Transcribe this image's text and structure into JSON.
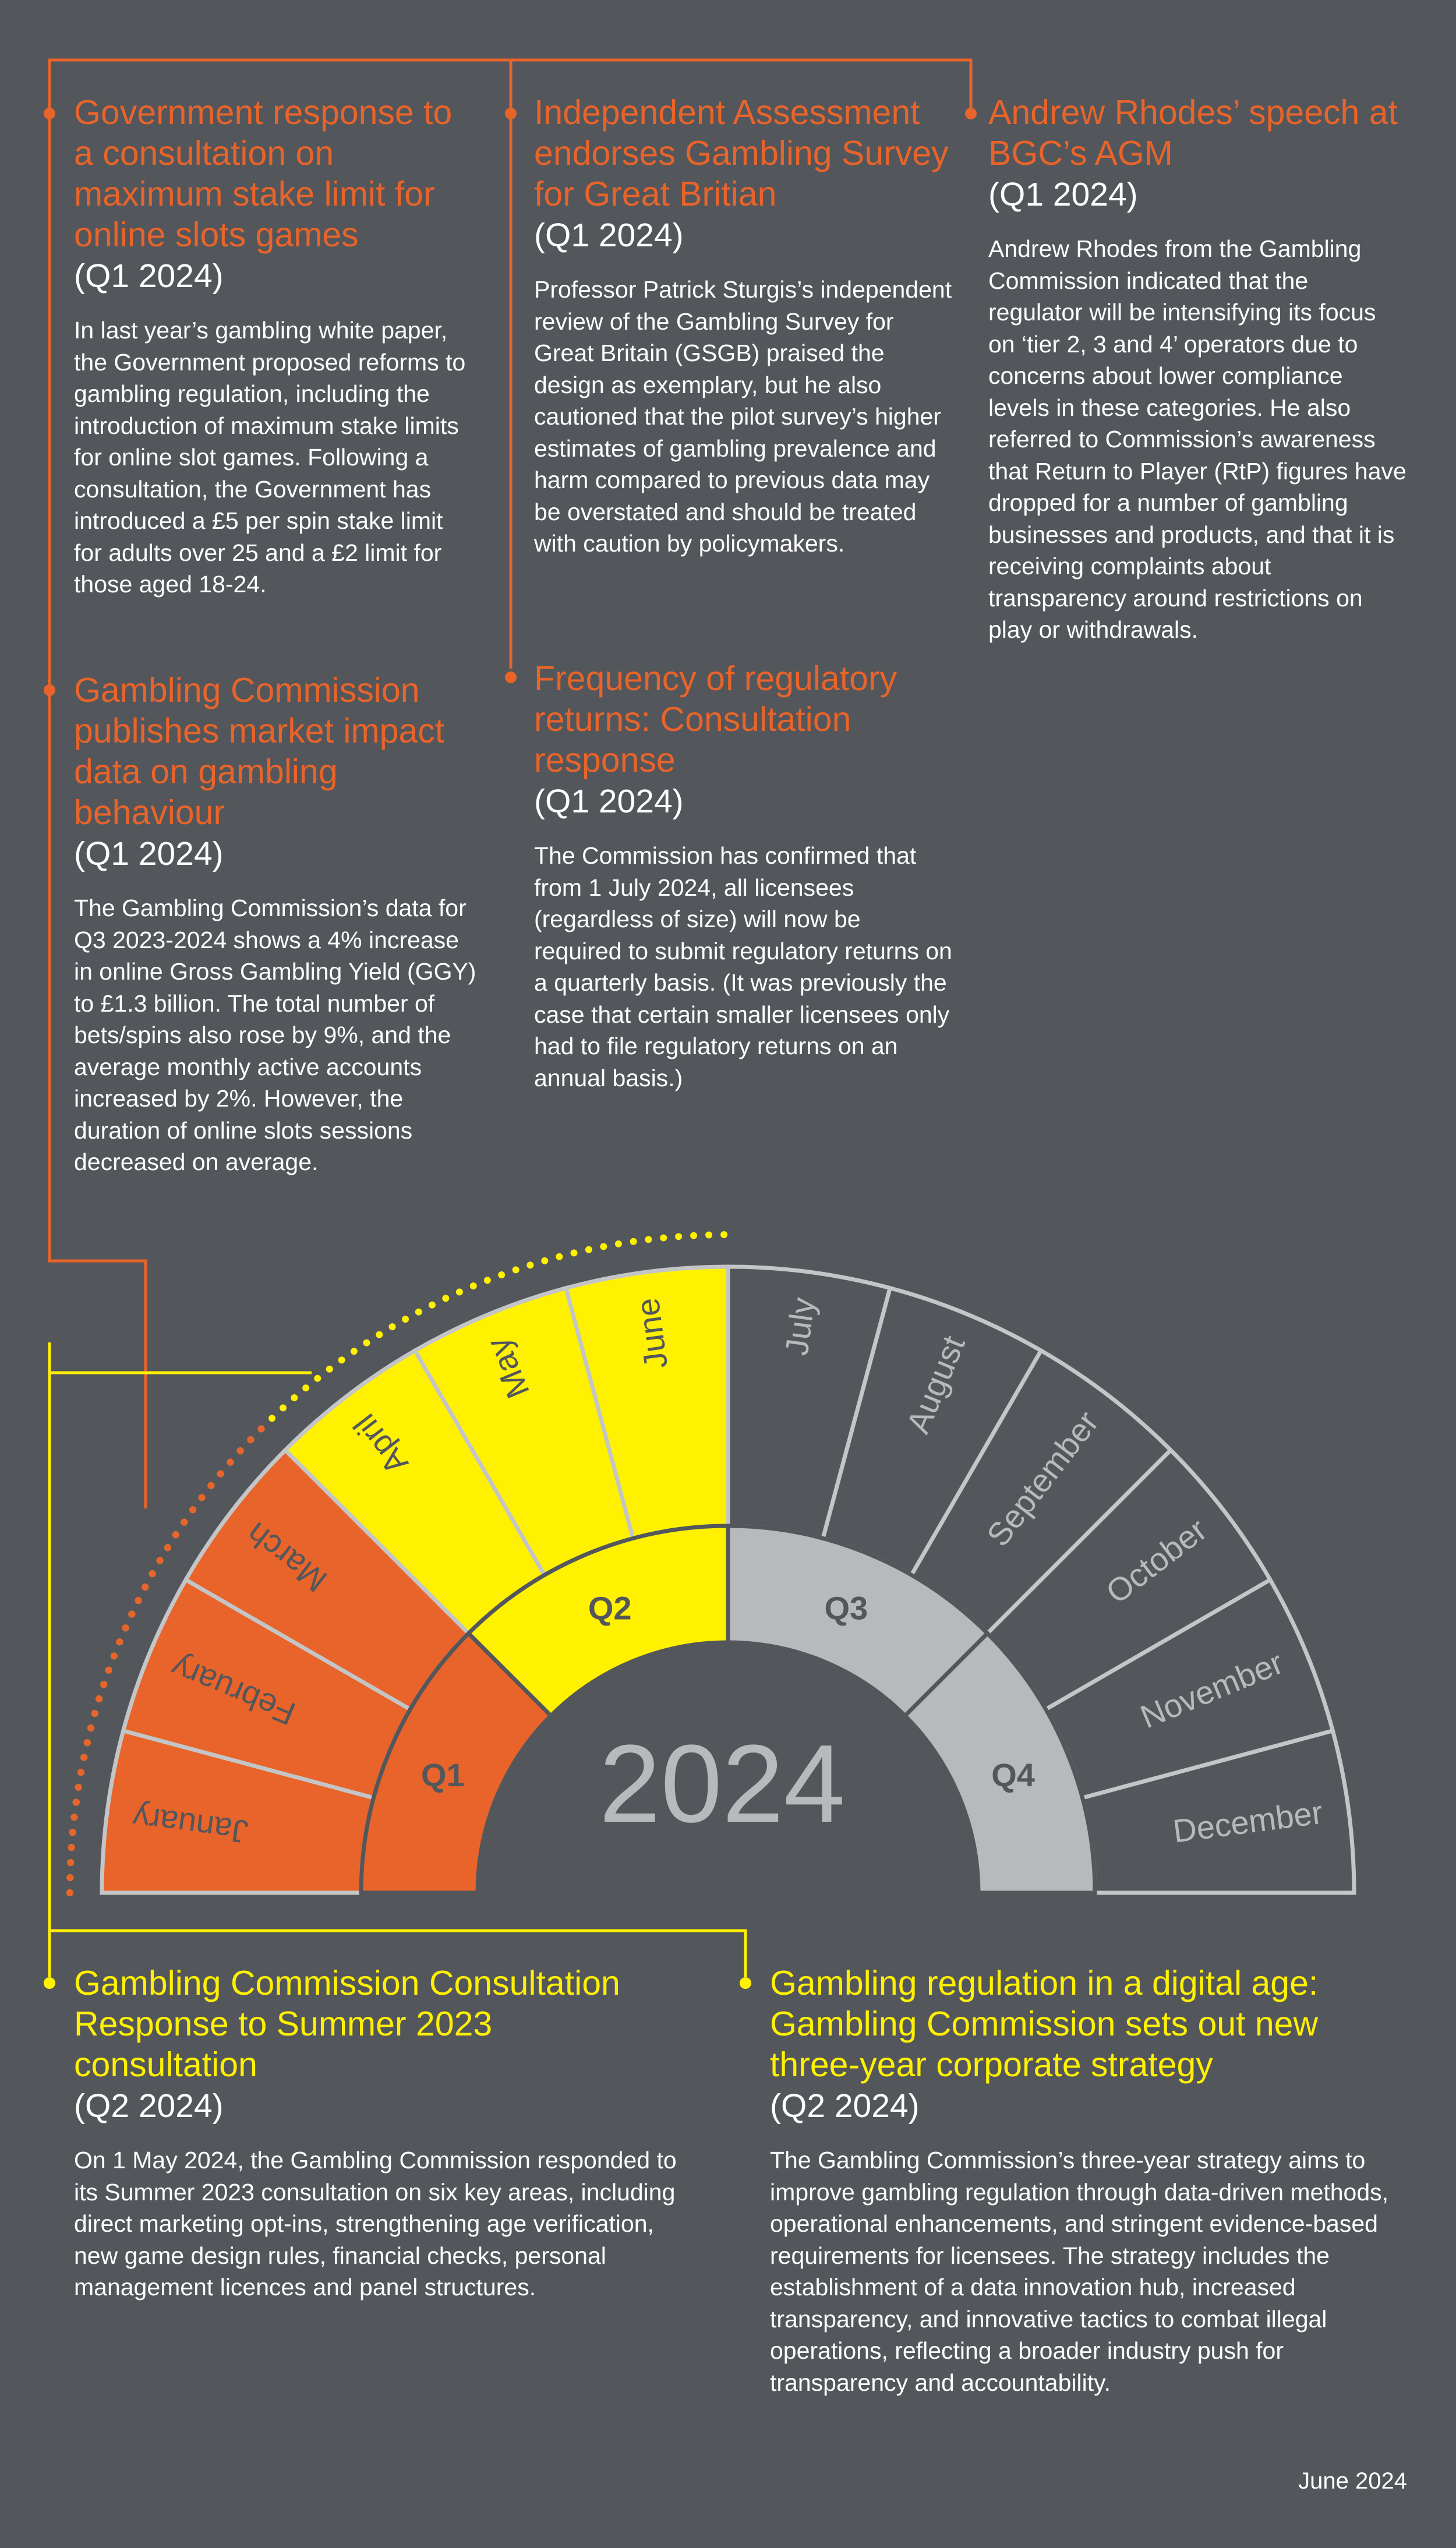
{
  "colors": {
    "background": "#53565b",
    "orange": "#e8642a",
    "yellow": "#fff100",
    "grey_ring": "#b8b9bb",
    "outline": "#c4c5c7"
  },
  "items": [
    {
      "title": "Government response to a consultation on maximum stake limit for online slots games",
      "quarter": "(Q1 2024)",
      "body": "In last year’s gambling white paper, the Government proposed reforms to gambling regulation, including the introduction of maximum stake limits for online slot games. Following a consultation, the Government has introduced a £5 per spin stake limit for adults over 25 and a £2 limit for those aged 18-24."
    },
    {
      "title": "Independent Assessment endorses Gambling Survey for Great Britian",
      "quarter": "(Q1 2024)",
      "body": "Professor Patrick Sturgis’s independent review of the Gambling Survey for Great Britain (GSGB) praised the design as exemplary, but he also cautioned that the pilot survey’s higher estimates of gambling prevalence and harm compared to previous data may be overstated and should be treated with caution by policymakers."
    },
    {
      "title": "Andrew Rhodes’ speech at BGC’s AGM",
      "quarter": "(Q1 2024)",
      "body": "Andrew Rhodes from the Gambling Commission indicated that the regulator will be intensifying its focus on ‘tier 2, 3 and 4’ operators due to concerns about lower compliance levels in these categories. He also referred to Commission’s awareness that Return to Player (RtP) figures have dropped for a number of gambling businesses and products, and that it is receiving complaints about transparency around restrictions on play or withdrawals."
    },
    {
      "title": "Gambling Commission publishes market impact data on gambling behaviour",
      "quarter": "(Q1 2024)",
      "body": "The Gambling Commission’s data for Q3 2023-2024 shows a 4% increase in online Gross Gambling Yield (GGY) to £1.3 billion. The total number of bets/spins also rose by 9%, and the average monthly active accounts increased by 2%. However, the duration of online slots sessions decreased on average."
    },
    {
      "title": "Frequency of regulatory returns: Consultation response",
      "quarter": "(Q1 2024)",
      "body": "The Commission has confirmed that from 1 July 2024, all licensees (regardless of size) will now be required to submit regulatory returns on a quarterly basis. (It was previously the case that certain smaller licensees only had to file regulatory returns on an annual basis.)"
    },
    {
      "title": "Gambling Commission Consultation Response to Summer 2023 consultation",
      "quarter": "(Q2 2024)",
      "body": "On 1 May 2024, the Gambling Commission responded to its Summer 2023 consultation on six key areas, including direct marketing opt-ins, strengthening age verification, new game design rules, financial checks, personal management licences and panel structures."
    },
    {
      "title": "Gambling regulation in a digital age: Gambling Commission sets out new three-year corporate strategy",
      "quarter": "(Q2 2024)",
      "body": "The Gambling Commission’s three-year strategy aims to improve gambling regulation through data-driven methods, operational enhancements, and stringent evidence-based requirements for licensees. The strategy includes the establishment of a data innovation hub, increased transparency, and innovative tactics to combat illegal operations, reflecting a broader industry push for transparency and accountability."
    }
  ],
  "wheel": {
    "year": "2024",
    "quarters": [
      "Q1",
      "Q2",
      "Q3",
      "Q4"
    ],
    "months": [
      "January",
      "February",
      "March",
      "April",
      "May",
      "June",
      "July",
      "August",
      "September",
      "October",
      "November",
      "December"
    ],
    "highlighted_months": 6
  },
  "footer": "June 2024"
}
